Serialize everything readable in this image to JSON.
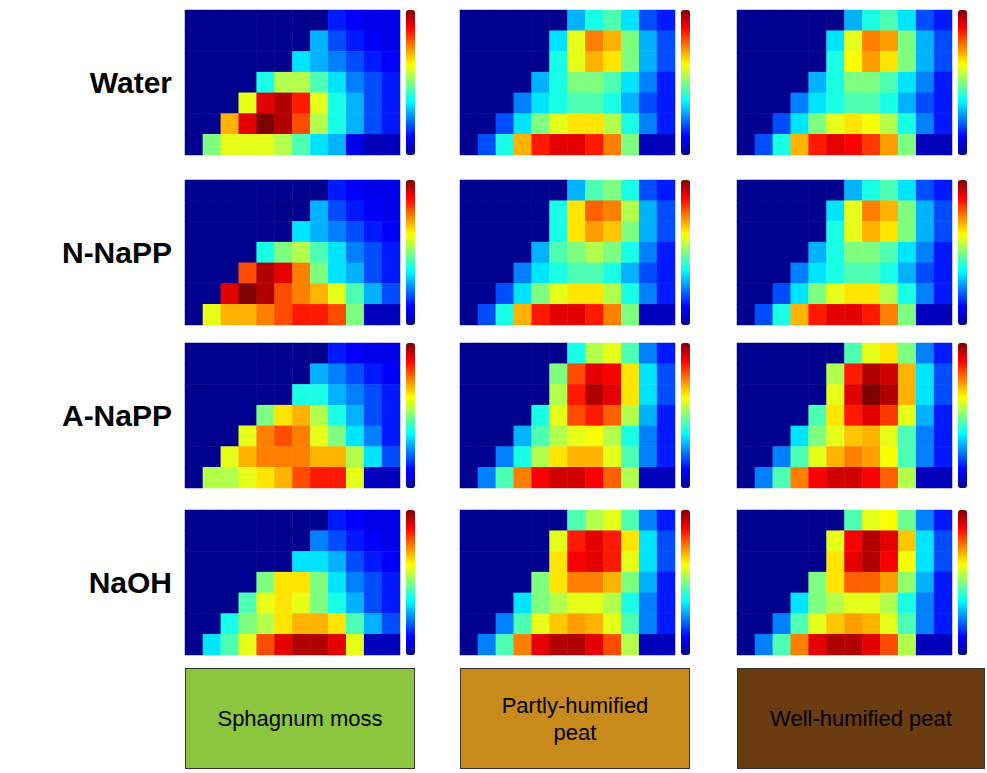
{
  "rows": [
    "Water",
    "N-NaPP",
    "A-NaPP",
    "NaOH"
  ],
  "columns": [
    {
      "label": "Sphagnum moss",
      "color": "#8cc63f"
    },
    {
      "label": "Partly-humified peat",
      "color": "#c98a1c"
    },
    {
      "label": "Well-humified peat",
      "color": "#6a3c10"
    }
  ],
  "chart_data": [
    {
      "type": "heatmap",
      "row": "Water",
      "column": "Sphagnum moss",
      "tick_labels": false,
      "colorbar_range": [
        0,
        1
      ],
      "cells": [
        [
          0,
          0,
          0,
          0,
          0,
          0,
          0,
          0,
          0.15,
          0.12,
          0.1,
          0.1
        ],
        [
          0,
          0,
          0,
          0,
          0,
          0,
          0,
          0.3,
          0.2,
          0.15,
          0.12,
          0.1
        ],
        [
          0,
          0,
          0,
          0,
          0,
          0,
          0.35,
          0.3,
          0.25,
          0.2,
          0.15,
          0.12
        ],
        [
          0,
          0,
          0,
          0,
          0.4,
          0.55,
          0.55,
          0.45,
          0.35,
          0.25,
          0.2,
          0.15
        ],
        [
          0,
          0,
          0,
          0.6,
          0.9,
          0.95,
          0.85,
          0.6,
          0.4,
          0.3,
          0.2,
          0.15
        ],
        [
          0,
          0,
          0.7,
          0.9,
          1,
          0.95,
          0.8,
          0.55,
          0.4,
          0.3,
          0.2,
          0.15
        ],
        [
          0,
          0.5,
          0.6,
          0.6,
          0.6,
          0.55,
          0.45,
          0.35,
          0.3,
          0.1,
          0.05,
          0.05
        ]
      ]
    },
    {
      "type": "heatmap",
      "row": "Water",
      "column": "Partly-humified peat",
      "tick_labels": false,
      "colorbar_range": [
        0,
        1
      ],
      "cells": [
        [
          0,
          0,
          0,
          0,
          0,
          0,
          0.3,
          0.4,
          0.45,
          0.35,
          0.2,
          0.15
        ],
        [
          0,
          0,
          0,
          0,
          0,
          0.35,
          0.6,
          0.75,
          0.7,
          0.5,
          0.3,
          0.2
        ],
        [
          0,
          0,
          0,
          0,
          0,
          0.4,
          0.6,
          0.7,
          0.65,
          0.5,
          0.3,
          0.2
        ],
        [
          0,
          0,
          0,
          0,
          0.3,
          0.4,
          0.5,
          0.5,
          0.45,
          0.35,
          0.25,
          0.15
        ],
        [
          0,
          0,
          0,
          0.25,
          0.35,
          0.4,
          0.45,
          0.45,
          0.4,
          0.3,
          0.2,
          0.15
        ],
        [
          0,
          0,
          0.2,
          0.35,
          0.5,
          0.6,
          0.65,
          0.65,
          0.55,
          0.4,
          0.25,
          0.15
        ],
        [
          0,
          0.2,
          0.4,
          0.7,
          0.85,
          0.9,
          0.9,
          0.85,
          0.75,
          0.5,
          0.05,
          0.05
        ]
      ]
    },
    {
      "type": "heatmap",
      "row": "Water",
      "column": "Well-humified peat",
      "tick_labels": false,
      "colorbar_range": [
        0,
        1
      ],
      "cells": [
        [
          0,
          0,
          0,
          0,
          0,
          0,
          0.3,
          0.4,
          0.45,
          0.35,
          0.2,
          0.15
        ],
        [
          0,
          0,
          0,
          0,
          0,
          0.35,
          0.6,
          0.75,
          0.72,
          0.5,
          0.3,
          0.2
        ],
        [
          0,
          0,
          0,
          0,
          0,
          0.4,
          0.62,
          0.72,
          0.65,
          0.5,
          0.3,
          0.2
        ],
        [
          0,
          0,
          0,
          0,
          0.3,
          0.4,
          0.5,
          0.5,
          0.45,
          0.35,
          0.25,
          0.15
        ],
        [
          0,
          0,
          0,
          0.25,
          0.35,
          0.4,
          0.45,
          0.45,
          0.4,
          0.3,
          0.2,
          0.15
        ],
        [
          0,
          0,
          0.2,
          0.35,
          0.5,
          0.6,
          0.65,
          0.62,
          0.55,
          0.4,
          0.25,
          0.15
        ],
        [
          0,
          0.2,
          0.4,
          0.7,
          0.85,
          0.9,
          0.88,
          0.82,
          0.72,
          0.5,
          0.05,
          0.05
        ]
      ]
    },
    {
      "type": "heatmap",
      "row": "N-NaPP",
      "column": "Sphagnum moss",
      "tick_labels": false,
      "colorbar_range": [
        0,
        1
      ],
      "cells": [
        [
          0,
          0,
          0,
          0,
          0,
          0,
          0,
          0,
          0.15,
          0.12,
          0.1,
          0.1
        ],
        [
          0,
          0,
          0,
          0,
          0,
          0,
          0,
          0.3,
          0.2,
          0.15,
          0.12,
          0.1
        ],
        [
          0,
          0,
          0,
          0,
          0,
          0,
          0.35,
          0.3,
          0.25,
          0.2,
          0.15,
          0.12
        ],
        [
          0,
          0,
          0,
          0,
          0.4,
          0.5,
          0.55,
          0.45,
          0.35,
          0.25,
          0.2,
          0.15
        ],
        [
          0,
          0,
          0,
          0.8,
          0.95,
          0.9,
          0.75,
          0.5,
          0.35,
          0.3,
          0.2,
          0.15
        ],
        [
          0,
          0,
          0.9,
          1,
          0.95,
          0.8,
          0.75,
          0.7,
          0.6,
          0.45,
          0.3,
          0.2
        ],
        [
          0,
          0.6,
          0.7,
          0.7,
          0.75,
          0.8,
          0.85,
          0.85,
          0.8,
          0.5,
          0.05,
          0.05
        ]
      ]
    },
    {
      "type": "heatmap",
      "row": "N-NaPP",
      "column": "Partly-humified peat",
      "tick_labels": false,
      "colorbar_range": [
        0,
        1
      ],
      "cells": [
        [
          0,
          0,
          0,
          0,
          0,
          0,
          0.3,
          0.45,
          0.5,
          0.4,
          0.2,
          0.15
        ],
        [
          0,
          0,
          0,
          0,
          0,
          0.4,
          0.65,
          0.78,
          0.75,
          0.55,
          0.3,
          0.2
        ],
        [
          0,
          0,
          0,
          0,
          0,
          0.4,
          0.65,
          0.72,
          0.68,
          0.5,
          0.3,
          0.2
        ],
        [
          0,
          0,
          0,
          0,
          0.3,
          0.45,
          0.5,
          0.55,
          0.5,
          0.4,
          0.25,
          0.15
        ],
        [
          0,
          0,
          0,
          0.25,
          0.35,
          0.4,
          0.45,
          0.45,
          0.4,
          0.3,
          0.2,
          0.15
        ],
        [
          0,
          0,
          0.2,
          0.35,
          0.5,
          0.6,
          0.65,
          0.65,
          0.55,
          0.4,
          0.25,
          0.15
        ],
        [
          0,
          0.2,
          0.4,
          0.7,
          0.85,
          0.9,
          0.9,
          0.85,
          0.75,
          0.5,
          0.05,
          0.05
        ]
      ]
    },
    {
      "type": "heatmap",
      "row": "N-NaPP",
      "column": "Well-humified peat",
      "tick_labels": false,
      "colorbar_range": [
        0,
        1
      ],
      "cells": [
        [
          0,
          0,
          0,
          0,
          0,
          0,
          0.3,
          0.4,
          0.45,
          0.35,
          0.2,
          0.15
        ],
        [
          0,
          0,
          0,
          0,
          0,
          0.35,
          0.6,
          0.75,
          0.7,
          0.5,
          0.3,
          0.2
        ],
        [
          0,
          0,
          0,
          0,
          0,
          0.4,
          0.6,
          0.7,
          0.65,
          0.5,
          0.3,
          0.2
        ],
        [
          0,
          0,
          0,
          0,
          0.3,
          0.4,
          0.5,
          0.5,
          0.45,
          0.35,
          0.25,
          0.15
        ],
        [
          0,
          0,
          0,
          0.25,
          0.35,
          0.4,
          0.45,
          0.45,
          0.4,
          0.3,
          0.2,
          0.15
        ],
        [
          0,
          0,
          0.2,
          0.35,
          0.5,
          0.6,
          0.65,
          0.65,
          0.55,
          0.4,
          0.25,
          0.15
        ],
        [
          0,
          0.2,
          0.4,
          0.7,
          0.85,
          0.9,
          0.9,
          0.85,
          0.75,
          0.5,
          0.05,
          0.05
        ]
      ]
    },
    {
      "type": "heatmap",
      "row": "A-NaPP",
      "column": "Sphagnum moss",
      "tick_labels": false,
      "colorbar_range": [
        0,
        1
      ],
      "cells": [
        [
          0,
          0,
          0,
          0,
          0,
          0,
          0,
          0,
          0.15,
          0.12,
          0.1,
          0.1
        ],
        [
          0,
          0,
          0,
          0,
          0,
          0,
          0,
          0.3,
          0.25,
          0.2,
          0.15,
          0.12
        ],
        [
          0,
          0,
          0,
          0,
          0,
          0,
          0.4,
          0.4,
          0.3,
          0.25,
          0.2,
          0.15
        ],
        [
          0,
          0,
          0,
          0,
          0.5,
          0.65,
          0.7,
          0.55,
          0.4,
          0.3,
          0.2,
          0.15
        ],
        [
          0,
          0,
          0,
          0.6,
          0.75,
          0.8,
          0.75,
          0.6,
          0.5,
          0.35,
          0.25,
          0.15
        ],
        [
          0,
          0,
          0.6,
          0.7,
          0.75,
          0.75,
          0.75,
          0.7,
          0.7,
          0.55,
          0.35,
          0.2
        ],
        [
          0,
          0.55,
          0.55,
          0.6,
          0.65,
          0.7,
          0.8,
          0.85,
          0.85,
          0.6,
          0.05,
          0.05
        ]
      ]
    },
    {
      "type": "heatmap",
      "row": "A-NaPP",
      "column": "Partly-humified peat",
      "tick_labels": false,
      "colorbar_range": [
        0,
        1
      ],
      "cells": [
        [
          0,
          0,
          0,
          0,
          0,
          0,
          0.4,
          0.55,
          0.6,
          0.45,
          0.25,
          0.15
        ],
        [
          0,
          0,
          0,
          0,
          0,
          0.5,
          0.8,
          0.9,
          0.88,
          0.65,
          0.35,
          0.2
        ],
        [
          0,
          0,
          0,
          0,
          0,
          0.55,
          0.85,
          0.95,
          0.9,
          0.65,
          0.35,
          0.2
        ],
        [
          0,
          0,
          0,
          0,
          0.4,
          0.6,
          0.8,
          0.85,
          0.78,
          0.55,
          0.3,
          0.15
        ],
        [
          0,
          0,
          0,
          0.3,
          0.45,
          0.55,
          0.6,
          0.62,
          0.55,
          0.4,
          0.25,
          0.15
        ],
        [
          0,
          0,
          0.25,
          0.4,
          0.55,
          0.65,
          0.7,
          0.7,
          0.6,
          0.45,
          0.25,
          0.15
        ],
        [
          0,
          0.25,
          0.45,
          0.75,
          0.88,
          0.92,
          0.92,
          0.88,
          0.78,
          0.55,
          0.05,
          0.05
        ]
      ]
    },
    {
      "type": "heatmap",
      "row": "A-NaPP",
      "column": "Well-humified peat",
      "tick_labels": false,
      "colorbar_range": [
        0,
        1
      ],
      "cells": [
        [
          0,
          0,
          0,
          0,
          0,
          0,
          0.45,
          0.6,
          0.65,
          0.5,
          0.25,
          0.15
        ],
        [
          0,
          0,
          0,
          0,
          0,
          0.55,
          0.85,
          0.95,
          0.92,
          0.7,
          0.35,
          0.2
        ],
        [
          0,
          0,
          0,
          0,
          0,
          0.6,
          0.9,
          1,
          0.95,
          0.7,
          0.35,
          0.2
        ],
        [
          0,
          0,
          0,
          0,
          0.45,
          0.65,
          0.85,
          0.9,
          0.82,
          0.6,
          0.3,
          0.15
        ],
        [
          0,
          0,
          0,
          0.35,
          0.5,
          0.6,
          0.68,
          0.7,
          0.6,
          0.45,
          0.25,
          0.15
        ],
        [
          0,
          0,
          0.25,
          0.45,
          0.6,
          0.7,
          0.75,
          0.72,
          0.62,
          0.45,
          0.25,
          0.15
        ],
        [
          0,
          0.25,
          0.45,
          0.75,
          0.88,
          0.92,
          0.92,
          0.88,
          0.78,
          0.55,
          0.05,
          0.05
        ]
      ]
    },
    {
      "type": "heatmap",
      "row": "NaOH",
      "column": "Sphagnum moss",
      "tick_labels": false,
      "colorbar_range": [
        0,
        1
      ],
      "cells": [
        [
          0,
          0,
          0,
          0,
          0,
          0,
          0,
          0,
          0.15,
          0.12,
          0.1,
          0.1
        ],
        [
          0,
          0,
          0,
          0,
          0,
          0,
          0,
          0.25,
          0.2,
          0.15,
          0.12,
          0.1
        ],
        [
          0,
          0,
          0,
          0,
          0,
          0,
          0.35,
          0.35,
          0.3,
          0.2,
          0.15,
          0.12
        ],
        [
          0,
          0,
          0,
          0,
          0.5,
          0.65,
          0.65,
          0.5,
          0.35,
          0.25,
          0.2,
          0.15
        ],
        [
          0,
          0,
          0,
          0.45,
          0.6,
          0.65,
          0.6,
          0.5,
          0.4,
          0.3,
          0.2,
          0.15
        ],
        [
          0,
          0,
          0.4,
          0.5,
          0.55,
          0.65,
          0.7,
          0.7,
          0.65,
          0.45,
          0.3,
          0.2
        ],
        [
          0,
          0.35,
          0.45,
          0.6,
          0.8,
          0.9,
          0.95,
          0.95,
          0.9,
          0.6,
          0.05,
          0.05
        ]
      ]
    },
    {
      "type": "heatmap",
      "row": "NaOH",
      "column": "Partly-humified peat",
      "tick_labels": false,
      "colorbar_range": [
        0,
        1
      ],
      "cells": [
        [
          0,
          0,
          0,
          0,
          0,
          0,
          0.45,
          0.55,
          0.6,
          0.45,
          0.25,
          0.15
        ],
        [
          0,
          0,
          0,
          0,
          0,
          0.6,
          0.85,
          0.9,
          0.85,
          0.65,
          0.35,
          0.2
        ],
        [
          0,
          0,
          0,
          0,
          0,
          0.65,
          0.88,
          0.9,
          0.85,
          0.6,
          0.35,
          0.2
        ],
        [
          0,
          0,
          0,
          0,
          0.5,
          0.65,
          0.75,
          0.75,
          0.7,
          0.5,
          0.3,
          0.15
        ],
        [
          0,
          0,
          0,
          0.35,
          0.5,
          0.55,
          0.6,
          0.6,
          0.55,
          0.4,
          0.25,
          0.15
        ],
        [
          0,
          0,
          0.25,
          0.45,
          0.6,
          0.68,
          0.72,
          0.7,
          0.6,
          0.45,
          0.25,
          0.15
        ],
        [
          0,
          0.25,
          0.45,
          0.75,
          0.9,
          0.95,
          0.95,
          0.9,
          0.8,
          0.55,
          0.05,
          0.05
        ]
      ]
    },
    {
      "type": "heatmap",
      "row": "NaOH",
      "column": "Well-humified peat",
      "tick_labels": false,
      "colorbar_range": [
        0,
        1
      ],
      "cells": [
        [
          0,
          0,
          0,
          0,
          0,
          0,
          0.45,
          0.6,
          0.62,
          0.48,
          0.25,
          0.15
        ],
        [
          0,
          0,
          0,
          0,
          0,
          0.6,
          0.88,
          0.95,
          0.9,
          0.68,
          0.35,
          0.2
        ],
        [
          0,
          0,
          0,
          0,
          0,
          0.65,
          0.9,
          0.95,
          0.88,
          0.62,
          0.35,
          0.2
        ],
        [
          0,
          0,
          0,
          0,
          0.5,
          0.65,
          0.78,
          0.78,
          0.72,
          0.52,
          0.3,
          0.15
        ],
        [
          0,
          0,
          0,
          0.35,
          0.5,
          0.55,
          0.6,
          0.6,
          0.55,
          0.4,
          0.25,
          0.15
        ],
        [
          0,
          0,
          0.25,
          0.45,
          0.6,
          0.68,
          0.72,
          0.7,
          0.6,
          0.45,
          0.25,
          0.15
        ],
        [
          0,
          0.25,
          0.45,
          0.75,
          0.9,
          0.95,
          0.95,
          0.9,
          0.8,
          0.55,
          0.05,
          0.05
        ]
      ]
    }
  ]
}
